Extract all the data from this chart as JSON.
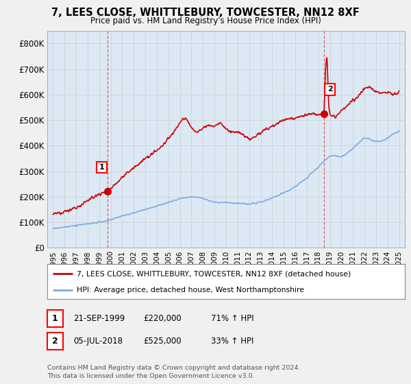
{
  "title1": "7, LEES CLOSE, WHITTLEBURY, TOWCESTER, NN12 8XF",
  "title2": "Price paid vs. HM Land Registry's House Price Index (HPI)",
  "bg_color": "#f0f0f0",
  "plot_bg_color": "#dce9f5",
  "red_color": "#cc0000",
  "blue_color": "#7aaadd",
  "sale1": {
    "date_x": 1999.72,
    "price": 220000,
    "label": "1"
  },
  "sale2": {
    "date_x": 2018.5,
    "price": 525000,
    "label": "2"
  },
  "ylim": [
    0,
    850000
  ],
  "xlim": [
    1994.5,
    2025.5
  ],
  "yticks": [
    0,
    100000,
    200000,
    300000,
    400000,
    500000,
    600000,
    700000,
    800000
  ],
  "ytick_labels": [
    "£0",
    "£100K",
    "£200K",
    "£300K",
    "£400K",
    "£500K",
    "£600K",
    "£700K",
    "£800K"
  ],
  "xticks": [
    1995,
    1996,
    1997,
    1998,
    1999,
    2000,
    2001,
    2002,
    2003,
    2004,
    2005,
    2006,
    2007,
    2008,
    2009,
    2010,
    2011,
    2012,
    2013,
    2014,
    2015,
    2016,
    2017,
    2018,
    2019,
    2020,
    2021,
    2022,
    2023,
    2024,
    2025
  ],
  "legend_red_label": "7, LEES CLOSE, WHITTLEBURY, TOWCESTER, NN12 8XF (detached house)",
  "legend_blue_label": "HPI: Average price, detached house, West Northamptonshire",
  "table_row1": [
    "1",
    "21-SEP-1999",
    "£220,000",
    "71% ↑ HPI"
  ],
  "table_row2": [
    "2",
    "05-JUL-2018",
    "£525,000",
    "33% ↑ HPI"
  ],
  "footer": "Contains HM Land Registry data © Crown copyright and database right 2024.\nThis data is licensed under the Open Government Licence v3.0."
}
